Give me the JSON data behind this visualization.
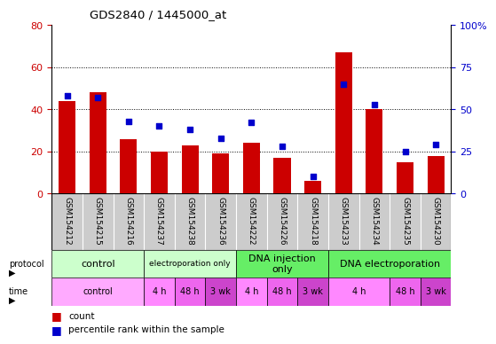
{
  "title": "GDS2840 / 1445000_at",
  "samples": [
    "GSM154212",
    "GSM154215",
    "GSM154216",
    "GSM154237",
    "GSM154238",
    "GSM154236",
    "GSM154222",
    "GSM154226",
    "GSM154218",
    "GSM154233",
    "GSM154234",
    "GSM154235",
    "GSM154230"
  ],
  "counts": [
    44,
    48,
    26,
    20,
    23,
    19,
    24,
    17,
    6,
    67,
    40,
    15,
    18
  ],
  "percentiles": [
    58,
    57,
    43,
    40,
    38,
    33,
    42,
    28,
    10,
    65,
    53,
    25,
    29
  ],
  "bar_color": "#cc0000",
  "dot_color": "#0000cc",
  "ylim_left": [
    0,
    80
  ],
  "ylim_right": [
    0,
    100
  ],
  "yticks_left": [
    0,
    20,
    40,
    60,
    80
  ],
  "yticks_right": [
    0,
    25,
    50,
    75,
    100
  ],
  "ytick_labels_right": [
    "0",
    "25",
    "50",
    "75",
    "100%"
  ],
  "protocol_groups": [
    {
      "label": "control",
      "start": 0,
      "end": 2,
      "color": "#ccffcc",
      "fontsize": 8
    },
    {
      "label": "electroporation only",
      "start": 3,
      "end": 5,
      "color": "#ccffcc",
      "fontsize": 6.5
    },
    {
      "label": "DNA injection\nonly",
      "start": 6,
      "end": 8,
      "color": "#66ee66",
      "fontsize": 8
    },
    {
      "label": "DNA electroporation",
      "start": 9,
      "end": 12,
      "color": "#66ee66",
      "fontsize": 8
    }
  ],
  "time_groups": [
    {
      "label": "control",
      "start": 0,
      "end": 2,
      "color": "#ffaaff"
    },
    {
      "label": "4 h",
      "start": 3,
      "end": 3,
      "color": "#ff88ff"
    },
    {
      "label": "48 h",
      "start": 4,
      "end": 4,
      "color": "#ee66ee"
    },
    {
      "label": "3 wk",
      "start": 5,
      "end": 5,
      "color": "#cc44cc"
    },
    {
      "label": "4 h",
      "start": 6,
      "end": 6,
      "color": "#ff88ff"
    },
    {
      "label": "48 h",
      "start": 7,
      "end": 7,
      "color": "#ee66ee"
    },
    {
      "label": "3 wk",
      "start": 8,
      "end": 8,
      "color": "#cc44cc"
    },
    {
      "label": "4 h",
      "start": 9,
      "end": 10,
      "color": "#ff88ff"
    },
    {
      "label": "48 h",
      "start": 11,
      "end": 11,
      "color": "#ee66ee"
    },
    {
      "label": "3 wk",
      "start": 12,
      "end": 12,
      "color": "#cc44cc"
    }
  ],
  "bg_color": "#ffffff",
  "tick_label_bg": "#cccccc",
  "bar_width": 0.55
}
